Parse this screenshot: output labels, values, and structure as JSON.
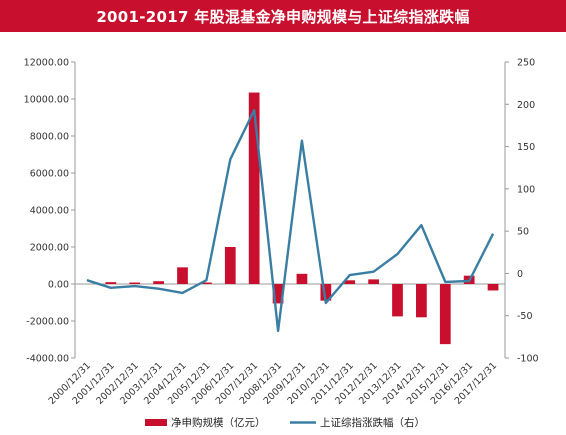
{
  "chart_data": {
    "type": "bar+line",
    "title": "2001-2017 年股混基金净申购规模与上证综指涨跌幅",
    "categories": [
      "2000/12/31",
      "2001/12/31",
      "2002/12/31",
      "2003/12/31",
      "2004/12/31",
      "2005/12/31",
      "2006/12/31",
      "2007/12/31",
      "2008/12/31",
      "2009/12/31",
      "2010/12/31",
      "2011/12/31",
      "2012/12/31",
      "2013/12/31",
      "2014/12/31",
      "2015/12/31",
      "2016/12/31",
      "2017/12/31"
    ],
    "bar_series": {
      "name": "净申购规模（亿元）",
      "color": "#c8102e",
      "axis": "left",
      "values": [
        0,
        100,
        80,
        150,
        900,
        80,
        2000,
        10350,
        -1050,
        550,
        -900,
        200,
        250,
        -1750,
        -1800,
        -3250,
        450,
        -350
      ]
    },
    "line_series": {
      "name": "上证综指涨跌幅（右）",
      "color": "#3a7ea3",
      "axis": "right",
      "values": [
        -8,
        -17,
        -15,
        -18,
        -23,
        -8,
        135,
        193,
        -68,
        157,
        -35,
        -2,
        2,
        23,
        57,
        -10,
        -9,
        47
      ]
    },
    "y_left": {
      "min": -4000,
      "max": 12000,
      "ticks": [
        -4000,
        -2000,
        0,
        2000,
        4000,
        6000,
        8000,
        10000,
        12000
      ],
      "tick_labels": [
        "-4000.00",
        "-2000.00",
        "0.00",
        "2000.00",
        "4000.00",
        "6000.00",
        "8000.00",
        "10000.00",
        "12000.00"
      ]
    },
    "y_right": {
      "min": -100,
      "max": 250,
      "ticks": [
        -100,
        -50,
        0,
        50,
        100,
        150,
        200,
        250
      ],
      "tick_labels": [
        "-100",
        "-50",
        "0",
        "50",
        "100",
        "150",
        "200",
        "250"
      ]
    },
    "grid": false,
    "legend_position": "bottom"
  }
}
